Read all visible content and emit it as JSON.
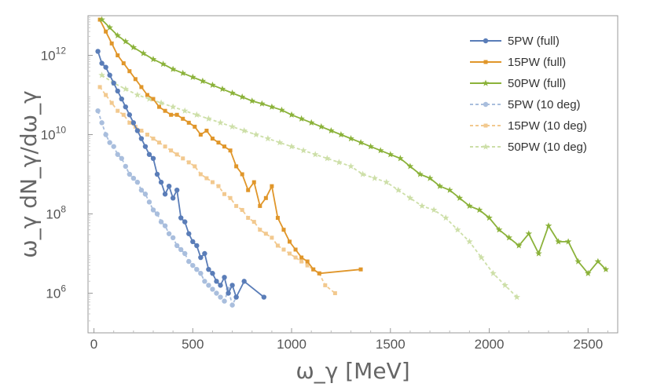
{
  "chart_data": {
    "type": "line",
    "title": "",
    "xlabel": "ω_γ [MeV]",
    "ylabel": "ω_γ dN_γ/dω_γ",
    "yscale": "log",
    "xlim": [
      -30,
      2650
    ],
    "ylim_log10": [
      5,
      13
    ],
    "x_ticks": [
      0,
      500,
      1000,
      1500,
      2000,
      2500
    ],
    "x_tick_labels": [
      "0",
      "500",
      "1000",
      "1500",
      "2000",
      "2500"
    ],
    "y_ticks": [
      {
        "base": "10",
        "exp": "6",
        "value": 1000000
      },
      {
        "base": "10",
        "exp": "8",
        "value": 100000000
      },
      {
        "base": "10",
        "exp": "10",
        "value": 10000000000
      },
      {
        "base": "10",
        "exp": "12",
        "value": 1000000000000
      }
    ],
    "legend_position": "top-right",
    "series": [
      {
        "name": "5PW (full)",
        "color": "#5a7db8",
        "marker": "circle",
        "dashed": false,
        "x": [
          20,
          40,
          60,
          80,
          100,
          120,
          140,
          160,
          180,
          200,
          220,
          240,
          260,
          280,
          300,
          320,
          340,
          360,
          380,
          400,
          420,
          440,
          460,
          480,
          500,
          520,
          540,
          560,
          580,
          600,
          620,
          640,
          660,
          680,
          700,
          720,
          760,
          860
        ],
        "log10": [
          12.1,
          11.8,
          11.7,
          11.5,
          11.3,
          11.1,
          10.9,
          10.7,
          10.5,
          10.3,
          10.1,
          9.9,
          9.7,
          9.5,
          9.4,
          9.0,
          8.8,
          8.5,
          8.7,
          8.4,
          8.6,
          7.9,
          7.8,
          7.5,
          7.3,
          7.2,
          6.9,
          7.0,
          6.6,
          6.5,
          6.3,
          6.2,
          6.4,
          6.0,
          6.2,
          5.9,
          6.3,
          5.9
        ]
      },
      {
        "name": "15PW (full)",
        "color": "#e0962a",
        "marker": "square",
        "dashed": false,
        "x": [
          30,
          60,
          90,
          120,
          150,
          180,
          210,
          240,
          270,
          300,
          330,
          360,
          390,
          420,
          450,
          480,
          510,
          540,
          570,
          600,
          630,
          660,
          690,
          720,
          750,
          780,
          810,
          840,
          870,
          900,
          930,
          960,
          990,
          1020,
          1050,
          1080,
          1110,
          1140,
          1350
        ],
        "log10": [
          12.9,
          12.6,
          12.3,
          12.0,
          11.8,
          11.6,
          11.4,
          11.2,
          11.0,
          10.9,
          10.7,
          10.6,
          10.5,
          10.5,
          10.4,
          10.3,
          10.2,
          10.0,
          10.1,
          9.9,
          9.8,
          9.7,
          9.6,
          9.2,
          9.0,
          8.6,
          8.8,
          8.2,
          8.4,
          8.7,
          7.9,
          7.6,
          7.3,
          7.1,
          6.9,
          6.8,
          6.6,
          6.5,
          6.6
        ]
      },
      {
        "name": "50PW (full)",
        "color": "#8bb23a",
        "marker": "star",
        "dashed": false,
        "x": [
          40,
          80,
          120,
          160,
          200,
          250,
          300,
          350,
          400,
          450,
          500,
          550,
          600,
          650,
          700,
          750,
          800,
          850,
          900,
          950,
          1000,
          1050,
          1100,
          1150,
          1200,
          1250,
          1300,
          1350,
          1400,
          1450,
          1500,
          1550,
          1600,
          1650,
          1700,
          1750,
          1800,
          1850,
          1900,
          1950,
          2000,
          2050,
          2100,
          2150,
          2200,
          2250,
          2300,
          2350,
          2400,
          2450,
          2500,
          2550,
          2590
        ],
        "log10": [
          12.9,
          12.7,
          12.5,
          12.35,
          12.2,
          12.05,
          11.9,
          11.78,
          11.65,
          11.55,
          11.45,
          11.35,
          11.25,
          11.15,
          11.05,
          10.95,
          10.85,
          10.78,
          10.7,
          10.62,
          10.5,
          10.4,
          10.3,
          10.2,
          10.1,
          10.0,
          9.9,
          9.8,
          9.7,
          9.6,
          9.5,
          9.4,
          9.2,
          9.0,
          8.9,
          8.7,
          8.6,
          8.4,
          8.2,
          8.1,
          7.9,
          7.6,
          7.4,
          7.2,
          7.5,
          7.0,
          7.7,
          7.3,
          7.3,
          6.8,
          6.5,
          6.8,
          6.6
        ]
      },
      {
        "name": "5PW (10 deg)",
        "color": "#a9bedd",
        "marker": "circle",
        "dashed": true,
        "x": [
          20,
          40,
          60,
          80,
          100,
          120,
          140,
          160,
          180,
          200,
          220,
          240,
          260,
          280,
          300,
          320,
          340,
          360,
          380,
          400,
          420,
          440,
          460,
          480,
          500,
          520,
          540,
          560,
          580,
          600,
          620,
          640,
          660,
          680,
          700,
          720
        ],
        "log10": [
          10.6,
          10.3,
          10.0,
          9.8,
          9.7,
          9.5,
          9.4,
          9.2,
          9.0,
          8.9,
          8.8,
          8.6,
          8.5,
          8.3,
          8.1,
          8.0,
          7.8,
          7.7,
          7.5,
          7.4,
          7.2,
          7.1,
          7.0,
          6.8,
          6.7,
          6.6,
          6.5,
          6.3,
          6.2,
          6.1,
          6.0,
          5.9,
          5.8,
          6.1,
          5.7,
          5.9
        ]
      },
      {
        "name": "15PW (10 deg)",
        "color": "#f2c98f",
        "marker": "square",
        "dashed": true,
        "x": [
          30,
          60,
          90,
          120,
          150,
          180,
          210,
          240,
          270,
          300,
          330,
          360,
          390,
          420,
          450,
          480,
          510,
          540,
          570,
          600,
          630,
          660,
          690,
          720,
          750,
          780,
          810,
          840,
          870,
          900,
          930,
          960,
          990,
          1020,
          1050,
          1080,
          1110,
          1140,
          1170,
          1220
        ],
        "log10": [
          11.2,
          11.0,
          10.8,
          10.6,
          10.5,
          10.3,
          10.2,
          10.1,
          10.0,
          9.9,
          9.8,
          9.7,
          9.6,
          9.5,
          9.4,
          9.3,
          9.2,
          9.0,
          8.9,
          8.8,
          8.7,
          8.5,
          8.4,
          8.2,
          8.1,
          7.9,
          7.8,
          7.6,
          7.5,
          7.4,
          7.2,
          7.1,
          7.0,
          6.9,
          6.8,
          6.7,
          6.6,
          6.5,
          6.2,
          6.0
        ]
      },
      {
        "name": "50PW (10 deg)",
        "color": "#cddfa8",
        "marker": "star",
        "dashed": true,
        "x": [
          40,
          100,
          160,
          220,
          280,
          340,
          400,
          460,
          520,
          580,
          640,
          700,
          760,
          820,
          880,
          940,
          1000,
          1060,
          1120,
          1180,
          1240,
          1300,
          1360,
          1420,
          1480,
          1540,
          1600,
          1660,
          1720,
          1780,
          1840,
          1900,
          1960,
          2020,
          2080,
          2140
        ],
        "log10": [
          11.5,
          11.3,
          11.15,
          11.0,
          10.9,
          10.8,
          10.7,
          10.6,
          10.5,
          10.4,
          10.3,
          10.2,
          10.1,
          10.0,
          9.9,
          9.8,
          9.7,
          9.6,
          9.5,
          9.4,
          9.3,
          9.2,
          9.0,
          8.9,
          8.8,
          8.6,
          8.4,
          8.2,
          8.1,
          7.9,
          7.6,
          7.3,
          6.9,
          6.5,
          6.2,
          5.9
        ]
      }
    ]
  }
}
